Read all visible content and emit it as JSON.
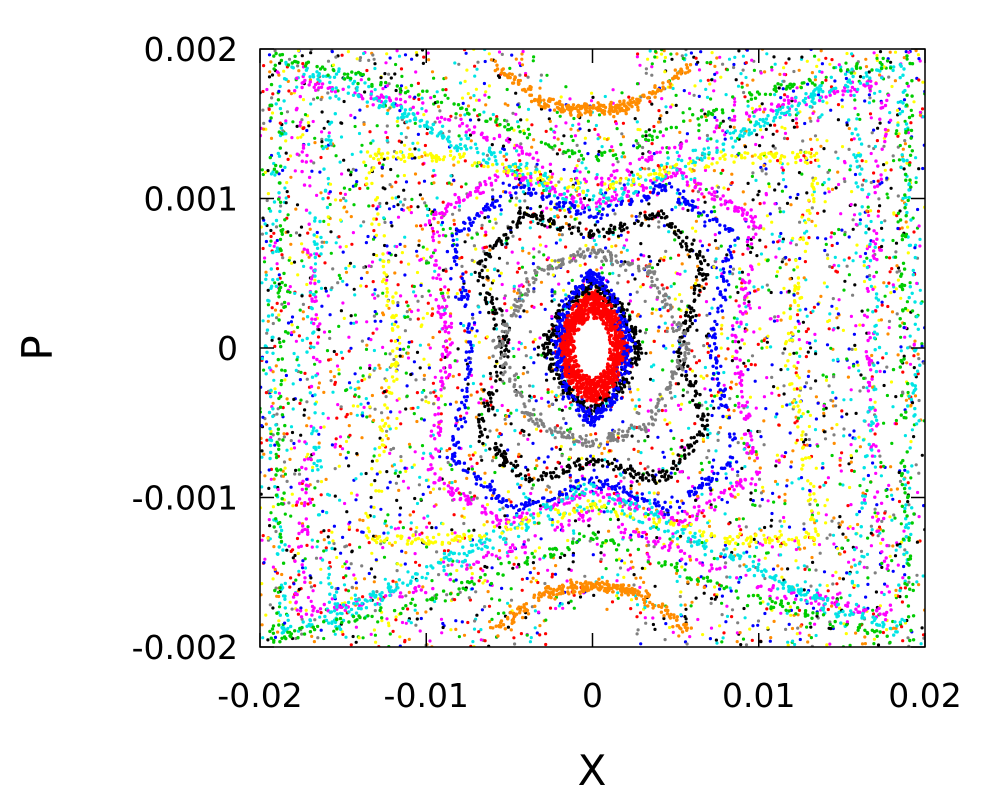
{
  "chart_data": {
    "type": "scatter",
    "title": "",
    "xlabel": "X",
    "ylabel": "P",
    "xlim": [
      -0.02,
      0.02
    ],
    "ylim": [
      -0.002,
      0.002
    ],
    "x_ticks": [
      -0.02,
      -0.01,
      0,
      0.01,
      0.02
    ],
    "x_tick_labels": [
      "-0.02",
      "-0.01",
      "0",
      "0.01",
      "0.02"
    ],
    "y_ticks": [
      -0.002,
      -0.001,
      0,
      0.001,
      0.002
    ],
    "y_tick_labels": [
      "-0.002",
      "-0.001",
      "0",
      "0.001",
      "0.002"
    ],
    "grid": false,
    "legend": "none",
    "series_colors": [
      "#ff0000",
      "#00cc00",
      "#0000ff",
      "#ff00ff",
      "#00e5e5",
      "#ffff00",
      "#000000",
      "#ff8c00",
      "#808080"
    ],
    "series": [
      {
        "color": "#ff0000",
        "curves": [
          {
            "kind": "closed",
            "x": [
              0.0003,
              0.0011,
              0.0018,
              0.0011,
              0.0003,
              -0.0011,
              -0.0018,
              -0.0011,
              -0.0003
            ],
            "y": [
              0.00035,
              0.0002,
              0.0,
              -0.0002,
              -0.00035,
              -0.0002,
              0.0,
              0.0002,
              0.00035
            ]
          },
          {
            "kind": "closed",
            "x": [
              0.0,
              0.0012,
              0.002,
              0.0012,
              0.0,
              -0.0012,
              -0.002,
              -0.0012
            ],
            "y": [
              0.00028,
              0.00016,
              0.0,
              -0.00016,
              -0.00028,
              -0.00016,
              0.0,
              0.00016
            ]
          }
        ]
      },
      {
        "color": "#000000",
        "curves": [
          {
            "kind": "closed",
            "x": [
              0.0,
              0.0018,
              0.0028,
              0.0018,
              0.0,
              -0.0018,
              -0.0028,
              -0.0018
            ],
            "y": [
              0.00044,
              0.00026,
              0.0,
              -0.00026,
              -0.00044,
              -0.00026,
              0.0,
              0.00026
            ]
          },
          {
            "kind": "closed",
            "x": [
              0.0,
              0.004,
              0.0068,
              0.0052,
              0.0068,
              0.004,
              0.0,
              -0.004,
              -0.0068,
              -0.0052,
              -0.0068,
              -0.004
            ],
            "y": [
              0.00075,
              0.0009,
              0.00055,
              0.0,
              -0.00055,
              -0.0009,
              -0.00075,
              -0.0009,
              -0.00055,
              0.0,
              0.00055,
              0.0009
            ]
          }
        ]
      },
      {
        "color": "#0000ff",
        "curves": [
          {
            "kind": "closed",
            "x": [
              0.0,
              0.0045,
              0.0085,
              0.0072,
              0.0085,
              0.0045,
              0.0,
              -0.0045,
              -0.0085,
              -0.0072,
              -0.0085,
              -0.0045
            ],
            "y": [
              0.00088,
              0.00108,
              0.00075,
              0.0,
              -0.00075,
              -0.00108,
              -0.00088,
              -0.00108,
              -0.00075,
              0.0,
              0.00075,
              0.00108
            ]
          },
          {
            "kind": "closed",
            "x": [
              0.0,
              0.0015,
              0.0022,
              0.0015,
              0.0,
              -0.0015,
              -0.0022,
              -0.0015
            ],
            "y": [
              0.0005,
              0.0003,
              0.0,
              -0.0003,
              -0.0005,
              -0.0003,
              0.0,
              0.0003
            ]
          }
        ]
      },
      {
        "color": "#ff00ff",
        "curves": [
          {
            "kind": "closed",
            "x": [
              0.0,
              0.0052,
              0.0098,
              0.0086,
              0.0098,
              0.0052,
              0.0,
              -0.0052,
              -0.0098,
              -0.0086,
              -0.0098,
              -0.0052
            ],
            "y": [
              0.00095,
              0.00118,
              0.00085,
              0.0,
              -0.00085,
              -0.00118,
              -0.00095,
              -0.00118,
              -0.00085,
              0.0,
              0.00085,
              0.00118
            ]
          },
          {
            "kind": "closed",
            "x": [
              0.0,
              0.0105,
              0.0178,
              0.0165,
              0.0178,
              0.0105,
              0.0,
              -0.0105,
              -0.0178,
              -0.0165,
              -0.0178,
              -0.0105
            ],
            "y": [
              0.0011,
              0.00162,
              0.00178,
              0.0,
              -0.00178,
              -0.00162,
              -0.0011,
              -0.00162,
              -0.00178,
              0.0,
              0.00178,
              0.00162
            ]
          }
        ]
      },
      {
        "color": "#00e5e5",
        "curves": [
          {
            "kind": "closed",
            "x": [
              0.0,
              0.0085,
              0.0155,
              0.0172,
              0.0155,
              0.0085,
              0.0,
              -0.0085,
              -0.0155,
              -0.0172,
              -0.0155,
              -0.0085
            ],
            "y": [
              0.00092,
              0.00138,
              0.00185,
              0.0,
              -0.00185,
              -0.00138,
              -0.00092,
              -0.00138,
              -0.00185,
              0.0,
              0.00185,
              0.00138
            ]
          },
          {
            "kind": "closed",
            "x": [
              0.0,
              0.011,
              0.0185,
              0.0195,
              0.0185,
              0.011,
              0.0,
              -0.011,
              -0.0185,
              -0.0195,
              -0.0185,
              -0.011
            ],
            "y": [
              0.00102,
              0.00155,
              0.0019,
              0.0,
              -0.0019,
              -0.00155,
              -0.00102,
              -0.00155,
              -0.0019,
              0.0,
              0.0019,
              0.00155
            ]
          }
        ]
      },
      {
        "color": "#ffff00",
        "curves": [
          {
            "kind": "closed",
            "x": [
              0.0,
              0.0082,
              0.0135,
              0.0118,
              0.0135,
              0.0082,
              0.0,
              -0.0082,
              -0.0135,
              -0.0118,
              -0.0135,
              -0.0082
            ],
            "y": [
              0.00105,
              0.00128,
              0.00128,
              0.0,
              -0.00128,
              -0.00128,
              -0.00105,
              -0.00128,
              -0.00128,
              0.0,
              0.00128,
              0.00128
            ]
          }
        ]
      },
      {
        "color": "#808080",
        "curves": [
          {
            "kind": "closed",
            "x": [
              0.0,
              0.0035,
              0.0058,
              0.0035,
              0.0,
              -0.0035,
              -0.0058,
              -0.0035
            ],
            "y": [
              0.00065,
              0.0005,
              0.0,
              -0.0005,
              -0.00065,
              -0.0005,
              0.0,
              0.0005
            ]
          }
        ]
      },
      {
        "color": "#ff8c00",
        "curves": [
          {
            "kind": "open",
            "x": [
              -0.006,
              -0.003,
              -0.0015,
              0.0,
              0.0015,
              0.003,
              0.006
            ],
            "y": [
              0.0019,
              0.00165,
              0.0016,
              0.0016,
              0.0016,
              0.00165,
              0.0019
            ]
          },
          {
            "kind": "open",
            "x": [
              -0.006,
              -0.003,
              -0.0015,
              0.0,
              0.0015,
              0.003,
              0.006
            ],
            "y": [
              -0.0019,
              -0.00165,
              -0.0016,
              -0.0016,
              -0.0016,
              -0.00165,
              -0.0019
            ]
          }
        ]
      },
      {
        "color": "#00cc00",
        "curves": [
          {
            "kind": "closed",
            "x": [
              0.0,
              0.0095,
              0.0192,
              0.0185,
              0.0192,
              0.0095,
              0.0,
              -0.0095,
              -0.0192,
              -0.0185,
              -0.0192,
              -0.0095
            ],
            "y": [
              0.00125,
              0.00168,
              0.00195,
              0.0,
              -0.00195,
              -0.00168,
              -0.00125,
              -0.00168,
              -0.00195,
              0.0,
              0.00195,
              0.00168
            ]
          }
        ]
      }
    ]
  }
}
